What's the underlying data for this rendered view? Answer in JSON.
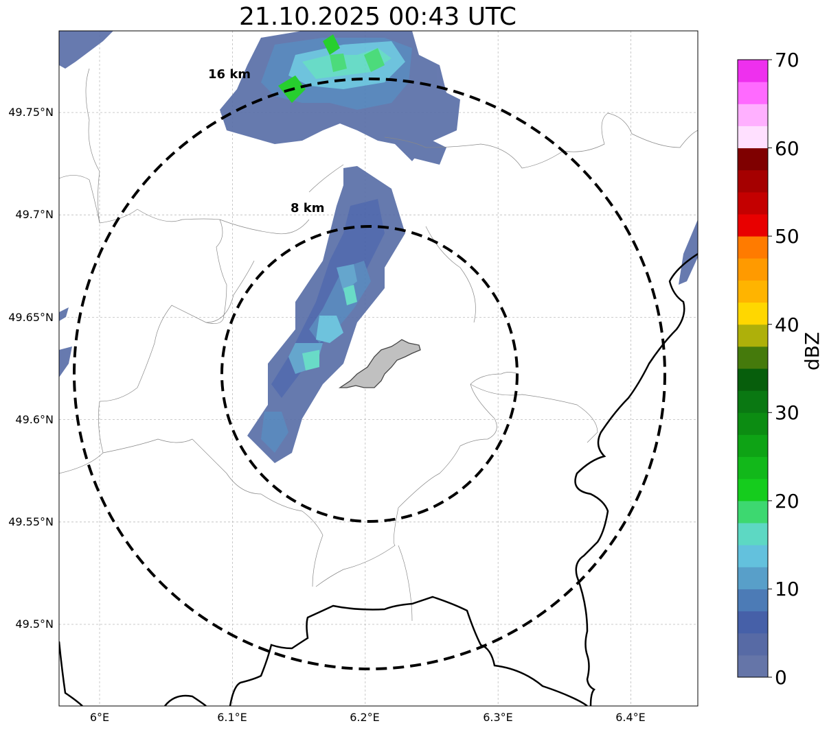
{
  "title": "21.10.2025 00:43 UTC",
  "map": {
    "lat_ticks": [
      "49.75°N",
      "49.7°N",
      "49.65°N",
      "49.6°N",
      "49.55°N",
      "49.5°N"
    ],
    "lon_ticks": [
      "6°E",
      "6.1°E",
      "6.2°E",
      "6.3°E",
      "6.4°E"
    ],
    "lat_values": [
      49.75,
      49.7,
      49.65,
      49.6,
      49.55,
      49.5
    ],
    "lon_values": [
      6.0,
      6.1,
      6.2,
      6.3,
      6.4
    ],
    "extent": {
      "lon_min": 5.97,
      "lon_max": 6.45,
      "lat_min": 49.46,
      "lat_max": 49.79
    },
    "center": {
      "lon": 6.2,
      "lat": 49.623
    },
    "rings": [
      {
        "label": "8 km",
        "radius_km": 8
      },
      {
        "label": "16 km",
        "radius_km": 16
      }
    ],
    "colors": {
      "border": "#000000",
      "admin_lines": "#888888",
      "ring": "#000000",
      "city_fill": "#c0c0c0"
    }
  },
  "colorbar": {
    "label": "dBZ",
    "ticks": [
      "0",
      "10",
      "20",
      "30",
      "40",
      "50",
      "60",
      "70"
    ],
    "min": 0,
    "max": 70,
    "step": 2.5,
    "colors": [
      "#6575a8",
      "#576aa5",
      "#4660a8",
      "#4c7bb6",
      "#589fc9",
      "#63c1dd",
      "#5dd8c3",
      "#3dd870",
      "#15cc1d",
      "#12b81a",
      "#0ea315",
      "#0c8c12",
      "#0a7812",
      "#075e0c",
      "#457a0c",
      "#aeb00a",
      "#ffd700",
      "#ffb400",
      "#ff9a00",
      "#ff7b00",
      "#e80000",
      "#c40000",
      "#a50000",
      "#7f0000",
      "#ffe0ff",
      "#ffb0ff",
      "#ff6aff",
      "#ee30ee"
    ]
  }
}
